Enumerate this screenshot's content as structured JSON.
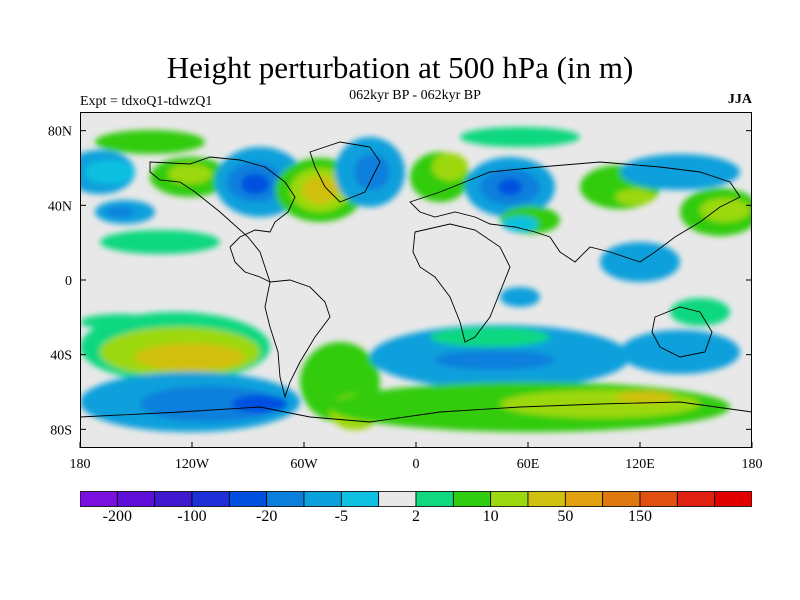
{
  "figure": {
    "title": "Height perturbation at 500 hPa (in m)",
    "subtitle": "062kyr BP - 062kyr BP",
    "left_label": "Expt = tdxoQ1-tdwzQ1",
    "right_label": "JJA"
  },
  "map": {
    "projection": "cylindrical-equidistant",
    "lon_range": [
      -180,
      180
    ],
    "lat_range": [
      -90,
      90
    ],
    "x_ticks": [
      "180",
      "120W",
      "60W",
      "0",
      "60E",
      "120E",
      "180"
    ],
    "x_tick_values": [
      -180,
      -120,
      -60,
      0,
      60,
      120,
      180
    ],
    "y_ticks": [
      "80N",
      "40N",
      "0",
      "40S",
      "80S"
    ],
    "y_tick_values": [
      80,
      40,
      0,
      -40,
      -80
    ]
  },
  "colorbar": {
    "colors": [
      "#7a10e0",
      "#5f10d8",
      "#4018d0",
      "#2030d8",
      "#0050e0",
      "#0a7fdc",
      "#0aa0dc",
      "#10c0e0",
      "#e8e8e8",
      "#10d880",
      "#30cc10",
      "#9cd810",
      "#d0c010",
      "#e0a010",
      "#e07810",
      "#e05010",
      "#e02010",
      "#e00000"
    ],
    "labels": [
      "-200",
      "-100",
      "-20",
      "-5",
      "2",
      "10",
      "50",
      "150"
    ],
    "label_boundaries": [
      1,
      3,
      5,
      7,
      9,
      11,
      13,
      15
    ]
  }
}
